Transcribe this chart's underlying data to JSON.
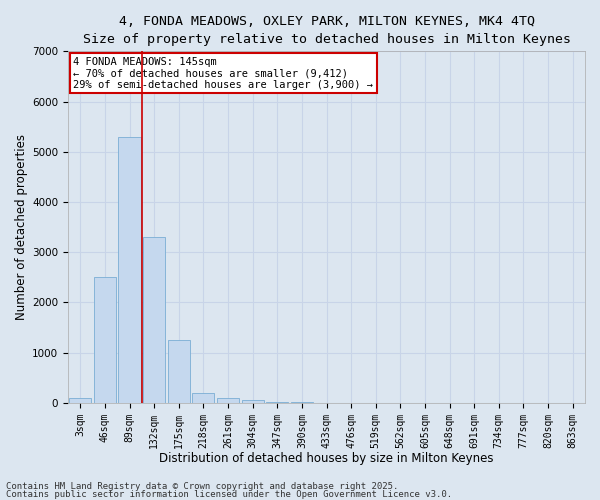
{
  "title_line1": "4, FONDA MEADOWS, OXLEY PARK, MILTON KEYNES, MK4 4TQ",
  "title_line2": "Size of property relative to detached houses in Milton Keynes",
  "xlabel": "Distribution of detached houses by size in Milton Keynes",
  "ylabel": "Number of detached properties",
  "categories": [
    "3sqm",
    "46sqm",
    "89sqm",
    "132sqm",
    "175sqm",
    "218sqm",
    "261sqm",
    "304sqm",
    "347sqm",
    "390sqm",
    "433sqm",
    "476sqm",
    "519sqm",
    "562sqm",
    "605sqm",
    "648sqm",
    "691sqm",
    "734sqm",
    "777sqm",
    "820sqm",
    "863sqm"
  ],
  "values": [
    100,
    2500,
    5300,
    3300,
    1250,
    200,
    100,
    50,
    20,
    8,
    3,
    1,
    0,
    0,
    0,
    0,
    0,
    0,
    0,
    0,
    0
  ],
  "bar_color": "#c5d8ee",
  "bar_edge_color": "#7aaed4",
  "vertical_line_x": 2.5,
  "vertical_line_color": "#cc0000",
  "annotation_text": "4 FONDA MEADOWS: 145sqm\n← 70% of detached houses are smaller (9,412)\n29% of semi-detached houses are larger (3,900) →",
  "annotation_box_facecolor": "#ffffff",
  "annotation_box_edgecolor": "#cc0000",
  "ylim": [
    0,
    7000
  ],
  "yticks": [
    0,
    1000,
    2000,
    3000,
    4000,
    5000,
    6000,
    7000
  ],
  "grid_color": "#c8d4e8",
  "background_color": "#dce6f0",
  "footer_line1": "Contains HM Land Registry data © Crown copyright and database right 2025.",
  "footer_line2": "Contains public sector information licensed under the Open Government Licence v3.0.",
  "title1_fontsize": 9.5,
  "title2_fontsize": 9,
  "axis_label_fontsize": 8.5,
  "tick_fontsize": 7,
  "annotation_fontsize": 7.5,
  "footer_fontsize": 6.5
}
